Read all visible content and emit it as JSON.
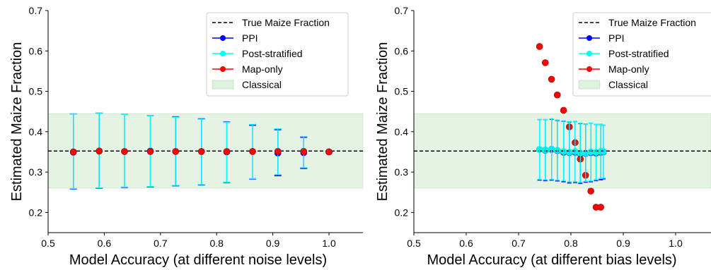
{
  "chart_data": [
    {
      "type": "scatter",
      "xlabel": "Model Accuracy (at different noise levels)",
      "ylabel": "Estimated Maize Fraction",
      "xlim": [
        0.5,
        1.05
      ],
      "ylim": [
        0.15,
        0.7
      ],
      "xticks": [
        "0.5",
        "0.6",
        "0.7",
        "0.8",
        "0.9",
        "1.0"
      ],
      "yticks": [
        "0.2",
        "0.3",
        "0.4",
        "0.5",
        "0.6",
        "0.7"
      ],
      "true_fraction": 0.352,
      "classical_band": [
        0.26,
        0.445
      ],
      "legend": [
        "True Maize Fraction",
        "PPI",
        "Post-stratified",
        "Map-only",
        "Classical"
      ],
      "legend_position": "top-right",
      "series": [
        {
          "name": "PPI",
          "color": "#0000ff",
          "x": [
            0.545,
            0.591,
            0.636,
            0.682,
            0.727,
            0.773,
            0.818,
            0.864,
            0.909,
            0.955,
            1.0
          ],
          "y": [
            0.349,
            0.352,
            0.351,
            0.352,
            0.351,
            0.351,
            0.35,
            0.351,
            0.347,
            0.348,
            0.35
          ],
          "lower": [
            0.258,
            0.26,
            0.262,
            0.263,
            0.266,
            0.268,
            0.274,
            0.283,
            0.291,
            0.309,
            0.35
          ],
          "upper": [
            0.444,
            0.446,
            0.443,
            0.44,
            0.437,
            0.432,
            0.424,
            0.416,
            0.405,
            0.386,
            0.35
          ]
        },
        {
          "name": "Post-stratified",
          "color": "#00ffff",
          "x": [
            0.545,
            0.591,
            0.636,
            0.682,
            0.727,
            0.773,
            0.818,
            0.864,
            0.909,
            0.955
          ],
          "y": [
            0.35,
            0.352,
            0.351,
            0.351,
            0.351,
            0.351,
            0.351,
            0.351,
            0.352,
            0.352
          ],
          "lower": [
            0.259,
            0.261,
            0.263,
            0.264,
            0.267,
            0.269,
            0.275,
            0.284,
            0.294,
            0.311
          ],
          "upper": [
            0.444,
            0.446,
            0.443,
            0.44,
            0.436,
            0.431,
            0.423,
            0.418,
            0.407,
            0.388
          ]
        },
        {
          "name": "Map-only",
          "color": "#ff0000",
          "x": [
            0.545,
            0.591,
            0.636,
            0.682,
            0.727,
            0.773,
            0.818,
            0.864,
            0.909,
            0.955,
            1.0
          ],
          "y": [
            0.35,
            0.352,
            0.351,
            0.351,
            0.351,
            0.351,
            0.351,
            0.351,
            0.351,
            0.351,
            0.35
          ]
        }
      ]
    },
    {
      "type": "scatter",
      "xlabel": "Model Accuracy (at different bias levels)",
      "ylabel": "Estimated Maize Fraction",
      "xlim": [
        0.5,
        1.05
      ],
      "ylim": [
        0.15,
        0.7
      ],
      "xticks": [
        "0.5",
        "0.6",
        "0.7",
        "0.8",
        "0.9",
        "1.0"
      ],
      "yticks": [
        "0.2",
        "0.3",
        "0.4",
        "0.5",
        "0.6",
        "0.7"
      ],
      "true_fraction": 0.352,
      "classical_band": [
        0.26,
        0.445
      ],
      "legend": [
        "True Maize Fraction",
        "PPI",
        "Post-stratified",
        "Map-only",
        "Classical"
      ],
      "legend_position": "top-right",
      "series": [
        {
          "name": "PPI",
          "color": "#0000ff",
          "x": [
            0.74,
            0.751,
            0.763,
            0.774,
            0.786,
            0.797,
            0.808,
            0.818,
            0.828,
            0.838,
            0.848,
            0.857,
            0.862
          ],
          "y": [
            0.356,
            0.354,
            0.356,
            0.353,
            0.349,
            0.348,
            0.349,
            0.345,
            0.346,
            0.348,
            0.347,
            0.349,
            0.35
          ],
          "lower": [
            0.28,
            0.279,
            0.28,
            0.278,
            0.276,
            0.273,
            0.274,
            0.272,
            0.275,
            0.276,
            0.279,
            0.281,
            0.283
          ],
          "upper": [
            0.43,
            0.43,
            0.431,
            0.428,
            0.426,
            0.424,
            0.425,
            0.42,
            0.419,
            0.421,
            0.418,
            0.418,
            0.416
          ]
        },
        {
          "name": "Post-stratified",
          "color": "#00ffff",
          "x": [
            0.74,
            0.751,
            0.763,
            0.774,
            0.786,
            0.797,
            0.808,
            0.818,
            0.828,
            0.838,
            0.848,
            0.857,
            0.862
          ],
          "y": [
            0.356,
            0.355,
            0.357,
            0.354,
            0.351,
            0.349,
            0.351,
            0.347,
            0.347,
            0.35,
            0.349,
            0.351,
            0.351
          ],
          "lower": [
            0.282,
            0.281,
            0.282,
            0.28,
            0.279,
            0.276,
            0.276,
            0.275,
            0.277,
            0.278,
            0.281,
            0.284,
            0.285
          ],
          "upper": [
            0.43,
            0.43,
            0.432,
            0.429,
            0.427,
            0.425,
            0.425,
            0.421,
            0.419,
            0.421,
            0.418,
            0.418,
            0.416
          ]
        },
        {
          "name": "Map-only",
          "color": "#ff0000",
          "x": [
            0.74,
            0.751,
            0.763,
            0.774,
            0.786,
            0.797,
            0.808,
            0.818,
            0.828,
            0.838,
            0.848,
            0.857
          ],
          "y": [
            0.611,
            0.571,
            0.53,
            0.491,
            0.453,
            0.412,
            0.373,
            0.332,
            0.292,
            0.253,
            0.213,
            0.213
          ]
        }
      ]
    }
  ]
}
